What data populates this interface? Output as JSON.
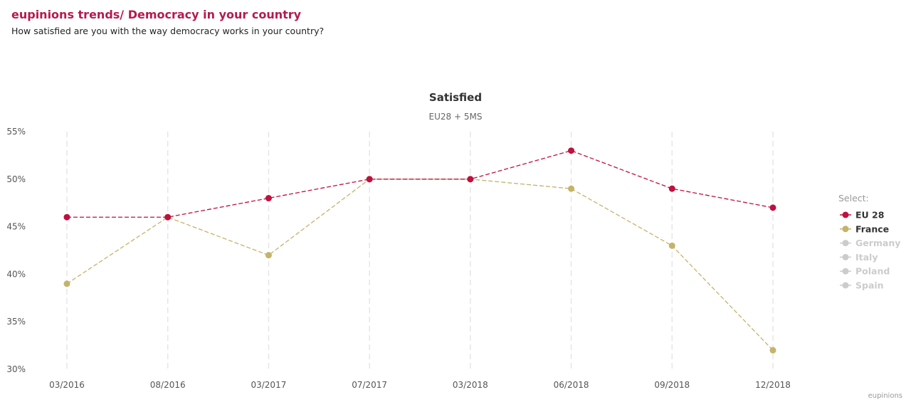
{
  "header": {
    "title": "eupinions trends/ Democracy in your country",
    "subtitle": "How satisfied are you with the way democracy works in your country?"
  },
  "chart_data": {
    "type": "line",
    "title": "Satisfied",
    "subtitle": "EU28 + 5MS",
    "categories": [
      "03/2016",
      "08/2016",
      "03/2017",
      "07/2017",
      "03/2018",
      "06/2018",
      "09/2018",
      "12/2018"
    ],
    "y_ticks": [
      "30%",
      "35%",
      "40%",
      "45%",
      "50%",
      "55%"
    ],
    "ylim": [
      30,
      55
    ],
    "y_unit": "%",
    "grid": "vertical dashed",
    "legend": {
      "heading": "Select:",
      "position": "right",
      "items": [
        {
          "name": "EU 28",
          "color": "#c0103f",
          "active": true
        },
        {
          "name": "France",
          "color": "#c4b36b",
          "active": true
        },
        {
          "name": "Germany",
          "color": "#cccccc",
          "active": false
        },
        {
          "name": "Italy",
          "color": "#cccccc",
          "active": false
        },
        {
          "name": "Poland",
          "color": "#cccccc",
          "active": false
        },
        {
          "name": "Spain",
          "color": "#cccccc",
          "active": false
        }
      ]
    },
    "series": [
      {
        "name": "EU 28",
        "color": "#c0103f",
        "values": [
          46,
          46,
          48,
          50,
          50,
          53,
          49,
          47
        ]
      },
      {
        "name": "France",
        "color": "#c4b36b",
        "values": [
          39,
          46,
          42,
          50,
          50,
          49,
          43,
          32
        ]
      }
    ],
    "credit": "eupinions"
  }
}
